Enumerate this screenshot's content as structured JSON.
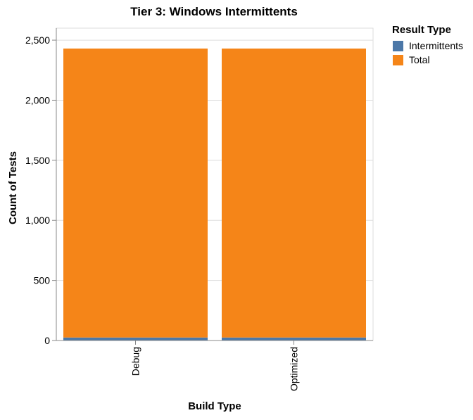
{
  "chart_data": {
    "type": "bar",
    "stacked": true,
    "title": "Tier 3: Windows Intermittents",
    "xlabel": "Build Type",
    "ylabel": "Count of Tests",
    "categories": [
      "Debug",
      "Optimized"
    ],
    "series": [
      {
        "name": "Intermittents",
        "color": "#4c78a8",
        "values": [
          25,
          25
        ]
      },
      {
        "name": "Total",
        "color": "#f58518",
        "values": [
          2405,
          2405
        ]
      }
    ],
    "ylim": [
      0,
      2600
    ],
    "yticks": [
      0,
      500,
      1000,
      1500,
      2000,
      2500
    ],
    "ytick_labels": [
      "0",
      "500",
      "1,000",
      "1,500",
      "2,000",
      "2,500"
    ],
    "grid": true,
    "legend": {
      "title": "Result Type",
      "position": "top-right"
    }
  }
}
